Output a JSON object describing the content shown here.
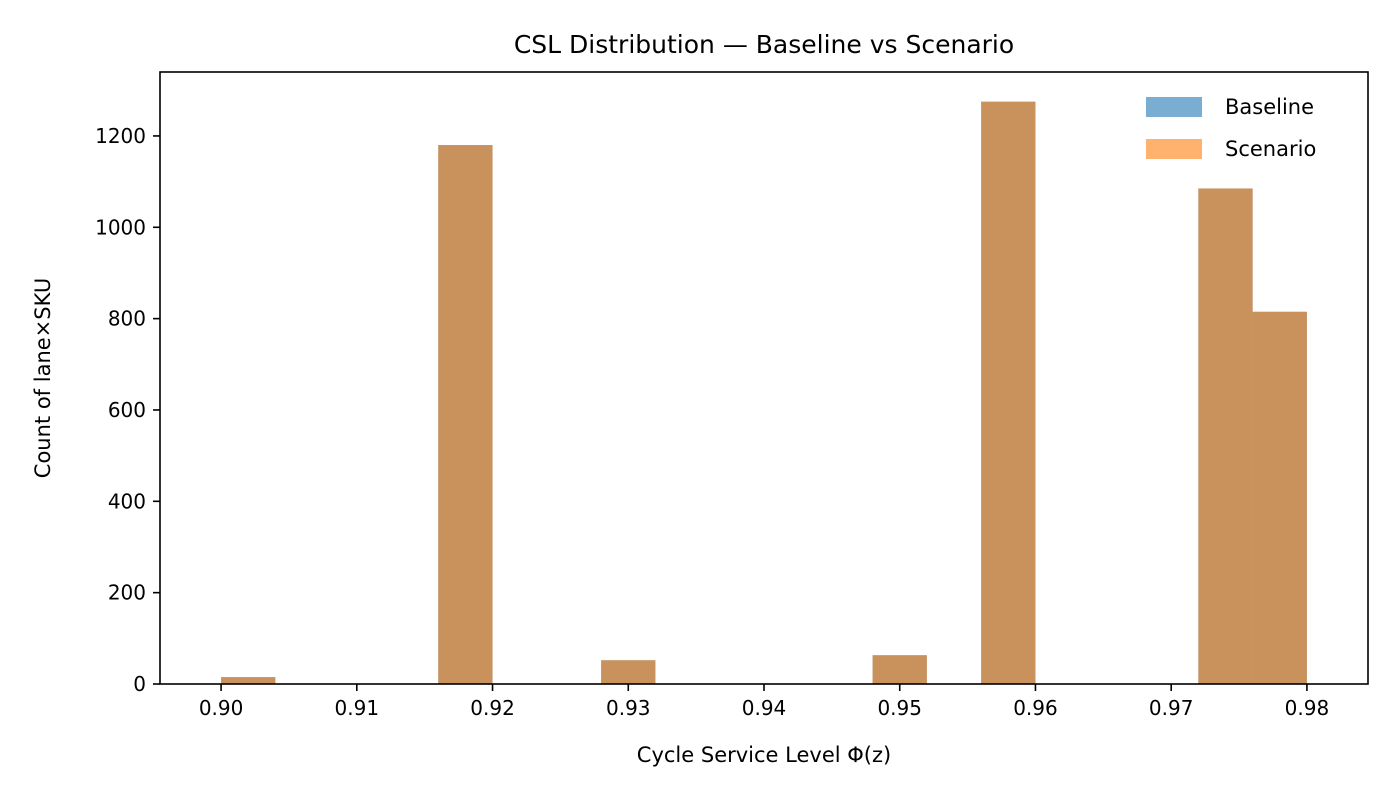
{
  "chart_data": {
    "type": "bar",
    "title": "CSL Distribution — Baseline vs Scenario",
    "xlabel": "Cycle Service Level Φ(z)",
    "ylabel": "Count of lane×SKU",
    "xlim": [
      0.8955,
      0.9845
    ],
    "ylim": [
      0,
      1340
    ],
    "x_ticks": [
      "0.90",
      "0.91",
      "0.92",
      "0.93",
      "0.94",
      "0.95",
      "0.96",
      "0.97",
      "0.98"
    ],
    "x_tick_values": [
      0.9,
      0.91,
      0.92,
      0.93,
      0.94,
      0.95,
      0.96,
      0.97,
      0.98
    ],
    "y_ticks": [
      "0",
      "200",
      "400",
      "600",
      "800",
      "1000",
      "1200"
    ],
    "y_tick_values": [
      0,
      200,
      400,
      600,
      800,
      1000,
      1200
    ],
    "bin_edges": [
      0.9,
      0.904,
      0.908,
      0.912,
      0.916,
      0.92,
      0.924,
      0.928,
      0.932,
      0.936,
      0.94,
      0.944,
      0.948,
      0.952,
      0.956,
      0.96,
      0.964,
      0.968,
      0.972,
      0.976,
      0.98
    ],
    "series": [
      {
        "name": "Baseline",
        "color": "#1f77b4",
        "alpha": 0.6,
        "values": [
          15,
          0,
          0,
          0,
          1180,
          0,
          0,
          52,
          0,
          0,
          0,
          0,
          63,
          0,
          1275,
          0,
          0,
          0,
          1085,
          815
        ]
      },
      {
        "name": "Scenario",
        "color": "#ff7f0e",
        "alpha": 0.6,
        "values": [
          15,
          0,
          0,
          0,
          1180,
          0,
          0,
          52,
          0,
          0,
          0,
          0,
          63,
          0,
          1275,
          0,
          0,
          0,
          1085,
          815
        ]
      }
    ],
    "legend_position": "upper right",
    "grid": false
  }
}
